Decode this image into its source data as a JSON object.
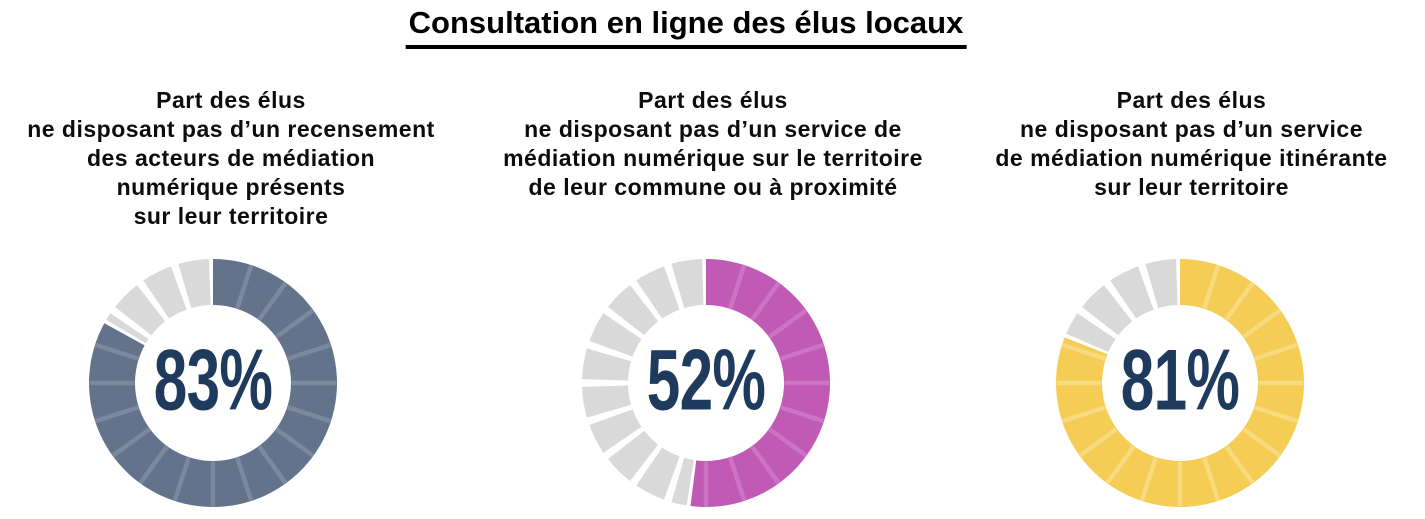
{
  "title": "Consultation en ligne des élus locaux",
  "value_text_color": "#1E3A5C",
  "chart_data": [
    {
      "type": "donut",
      "title_lines": [
        "Part des élus",
        "ne disposant pas d’un recensement",
        "des acteurs de médiation",
        "numérique présents",
        "sur leur territoire"
      ],
      "value": 83,
      "value_label": "83%",
      "color": "#64738C",
      "separator_color": "#7B889D",
      "track_color": "#D9D9D9",
      "segments": 20,
      "start": "top",
      "direction": "clockwise"
    },
    {
      "type": "donut",
      "title_lines": [
        "Part des élus",
        "ne disposant pas d’un service de",
        "médiation numérique sur le territoire",
        "de leur commune ou à proximité"
      ],
      "value": 52,
      "value_label": "52%",
      "color": "#C05AB5",
      "separator_color": "#CC74C4",
      "track_color": "#D9D9D9",
      "segments": 20,
      "start": "top",
      "direction": "clockwise"
    },
    {
      "type": "donut",
      "title_lines": [
        "Part des élus",
        "ne disposant pas d’un service",
        "de médiation numérique itinérante",
        "sur leur territoire"
      ],
      "value": 81,
      "value_label": "81%",
      "color": "#F5CD55",
      "separator_color": "#F8DA80",
      "track_color": "#D9D9D9",
      "segments": 20,
      "start": "top",
      "direction": "clockwise"
    }
  ]
}
